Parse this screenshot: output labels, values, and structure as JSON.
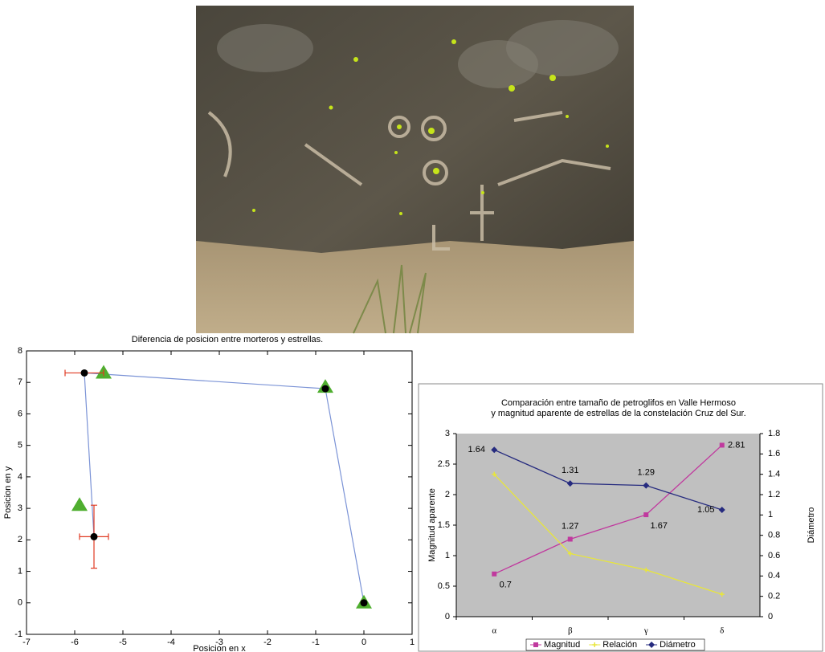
{
  "chart_data": [
    {
      "type": "errorbar",
      "title": "Diferencia de posicion entre morteros y estrellas.",
      "x_label": "Posicion en x",
      "y_label": "Posicion en y",
      "xlim": [
        -7,
        1
      ],
      "ylim": [
        -1,
        8
      ],
      "xticks": [
        -7,
        -6,
        -5,
        -4,
        -3,
        -2,
        -1,
        0,
        1
      ],
      "yticks": [
        -1,
        0,
        1,
        2,
        3,
        4,
        5,
        6,
        7,
        8
      ],
      "points": {
        "x": [
          0,
          -0.8,
          -5.8,
          -5.6
        ],
        "y": [
          0,
          6.8,
          7.3,
          2.1
        ],
        "xerr": [
          null,
          null,
          0.4,
          0.3
        ],
        "yerr": [
          null,
          null,
          null,
          1.0
        ],
        "color": "#000000",
        "line_color": "#7b93d6",
        "error_color": "#e03a22"
      },
      "triangles": {
        "x": [
          0,
          -0.8,
          -5.4,
          -5.9
        ],
        "y": [
          0,
          6.85,
          7.3,
          3.1
        ],
        "color": "#4fae2f"
      }
    },
    {
      "type": "line",
      "title": [
        "Comparación entre tamaño de petroglifos en Valle Hermoso",
        "y magnitud aparente de estrellas de la constelación Cruz del Sur."
      ],
      "y_label": "Magnitud aparente",
      "y2_label": "Diámetro",
      "categories": [
        "α",
        "β",
        "γ",
        "δ"
      ],
      "ylim": [
        0,
        3
      ],
      "yticks": [
        0,
        0.5,
        1,
        1.5,
        2,
        2.5,
        3
      ],
      "y2lim": [
        0,
        1.8
      ],
      "y2ticks": [
        0,
        0.2,
        0.4,
        0.6,
        0.8,
        1,
        1.2,
        1.4,
        1.6,
        1.8
      ],
      "series": [
        {
          "name": "Magnitud",
          "color": "#c0399e",
          "marker": "square",
          "values": [
            0.7,
            1.27,
            1.67,
            2.81
          ],
          "labels": true
        },
        {
          "name": "Relación",
          "color": "#e8e63a",
          "marker": "star",
          "axis": "y2",
          "values": [
            1.4,
            0.62,
            0.46,
            0.22
          ],
          "labels": false
        },
        {
          "name": "Diámetro",
          "color": "#262b7f",
          "marker": "diamond",
          "axis": "y2",
          "values": [
            1.64,
            1.31,
            1.29,
            1.05
          ],
          "labels": true
        }
      ]
    }
  ]
}
